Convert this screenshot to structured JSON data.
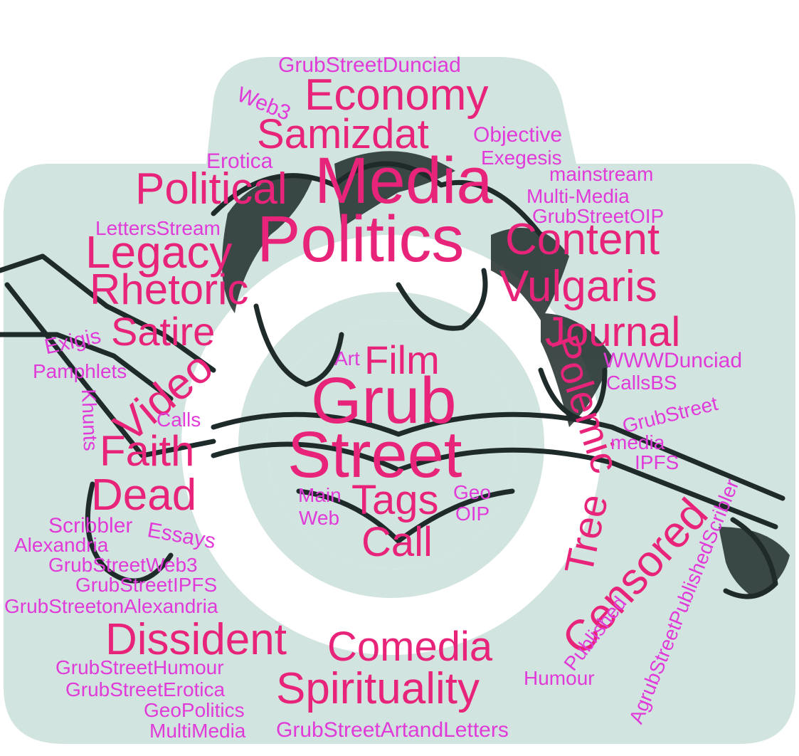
{
  "colors": {
    "camera_fill": "#d2e4df",
    "ink": "#1e2b2a",
    "deep_pink": "#e8237a",
    "magenta": "#e03ad8"
  },
  "words": [
    {
      "t": "Grub",
      "c": "deep_pink"
    },
    {
      "t": "Street",
      "c": "deep_pink"
    },
    {
      "t": "Media",
      "c": "deep_pink"
    },
    {
      "t": "Politics",
      "c": "deep_pink"
    },
    {
      "t": "Economy",
      "c": "deep_pink"
    },
    {
      "t": "Samizdat",
      "c": "deep_pink"
    },
    {
      "t": "Political",
      "c": "deep_pink"
    },
    {
      "t": "Legacy",
      "c": "deep_pink"
    },
    {
      "t": "Content",
      "c": "deep_pink"
    },
    {
      "t": "Rhetoric",
      "c": "deep_pink"
    },
    {
      "t": "Vulgaris",
      "c": "deep_pink"
    },
    {
      "t": "Journal",
      "c": "deep_pink"
    },
    {
      "t": "Satire",
      "c": "deep_pink"
    },
    {
      "t": "Film",
      "c": "deep_pink"
    },
    {
      "t": "Video",
      "c": "deep_pink"
    },
    {
      "t": "Faith",
      "c": "deep_pink"
    },
    {
      "t": "Dead",
      "c": "deep_pink"
    },
    {
      "t": "Tags",
      "c": "deep_pink"
    },
    {
      "t": "Call",
      "c": "deep_pink"
    },
    {
      "t": "Dissident",
      "c": "deep_pink"
    },
    {
      "t": "Comedia",
      "c": "deep_pink"
    },
    {
      "t": "Spirituality",
      "c": "deep_pink"
    },
    {
      "t": "Polemic",
      "c": "deep_pink"
    },
    {
      "t": "Tree",
      "c": "deep_pink"
    },
    {
      "t": "Censored",
      "c": "deep_pink"
    },
    {
      "t": "GrubStreetDunciad",
      "c": "magenta"
    },
    {
      "t": "Web3",
      "c": "magenta"
    },
    {
      "t": "Objective",
      "c": "magenta"
    },
    {
      "t": "Exegesis",
      "c": "magenta"
    },
    {
      "t": "Erotica",
      "c": "magenta"
    },
    {
      "t": "mainstream",
      "c": "magenta"
    },
    {
      "t": "Multi-Media",
      "c": "magenta"
    },
    {
      "t": "GrubStreetOIP",
      "c": "magenta"
    },
    {
      "t": "LettersStream",
      "c": "magenta"
    },
    {
      "t": "Exigis",
      "c": "magenta"
    },
    {
      "t": "Pamphlets",
      "c": "magenta"
    },
    {
      "t": "Art",
      "c": "magenta"
    },
    {
      "t": "WWWDunciad",
      "c": "magenta"
    },
    {
      "t": "CallsBS",
      "c": "magenta"
    },
    {
      "t": "Khunts",
      "c": "magenta"
    },
    {
      "t": "Calls",
      "c": "magenta"
    },
    {
      "t": "GrubStreet",
      "c": "magenta"
    },
    {
      "t": "media",
      "c": "magenta"
    },
    {
      "t": "IPFS",
      "c": "magenta"
    },
    {
      "t": "Main",
      "c": "magenta"
    },
    {
      "t": "Web",
      "c": "magenta"
    },
    {
      "t": "Geo",
      "c": "magenta"
    },
    {
      "t": "OIP",
      "c": "magenta"
    },
    {
      "t": "Scribbler",
      "c": "magenta"
    },
    {
      "t": "Essays",
      "c": "magenta"
    },
    {
      "t": "Alexandria",
      "c": "magenta"
    },
    {
      "t": "GrubStreetWeb3",
      "c": "magenta"
    },
    {
      "t": "GrubStreetIPFS",
      "c": "magenta"
    },
    {
      "t": "GrubStreetonAlexandria",
      "c": "magenta"
    },
    {
      "t": "GrubStreetHumour",
      "c": "magenta"
    },
    {
      "t": "GrubStreetErotica",
      "c": "magenta"
    },
    {
      "t": "GeoPolitics",
      "c": "magenta"
    },
    {
      "t": "MultiMedia",
      "c": "magenta"
    },
    {
      "t": "GrubStreetArtandLetters",
      "c": "magenta"
    },
    {
      "t": "Humour",
      "c": "magenta"
    },
    {
      "t": "Published",
      "c": "magenta"
    },
    {
      "t": "AgrubStreetPublishedScribler",
      "c": "magenta"
    }
  ]
}
